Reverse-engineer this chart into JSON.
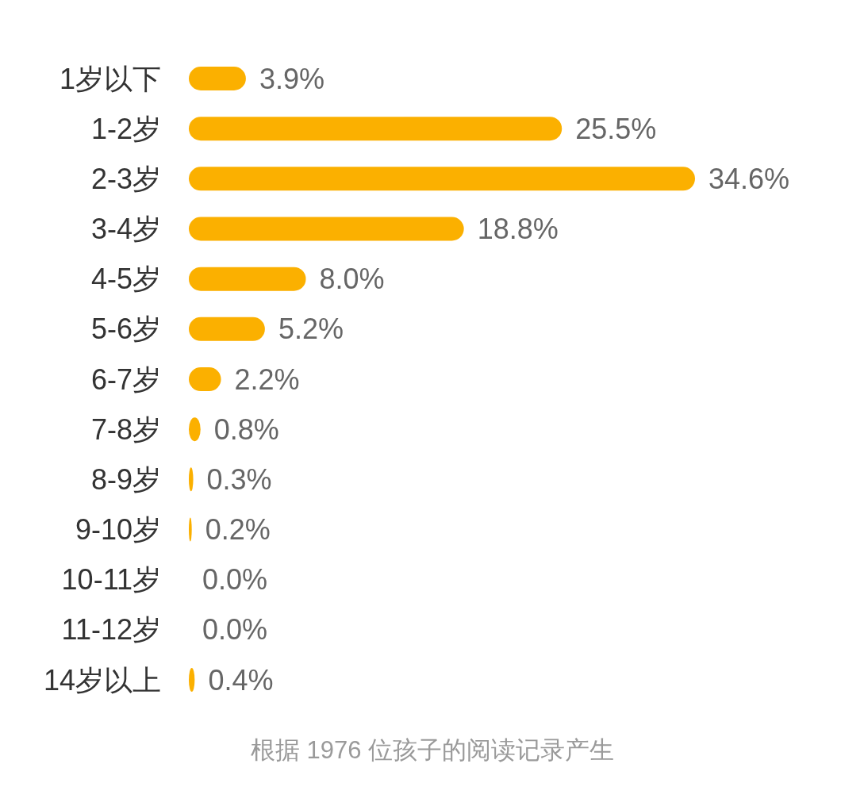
{
  "chart_data": {
    "type": "bar",
    "orientation": "horizontal",
    "color": "#fbb000",
    "categories": [
      "1岁以下",
      "1-2岁",
      "2-3岁",
      "3-4岁",
      "4-5岁",
      "5-6岁",
      "6-7岁",
      "7-8岁",
      "8-9岁",
      "9-10岁",
      "10-11岁",
      "11-12岁",
      "14岁以上"
    ],
    "values": [
      3.9,
      25.5,
      34.6,
      18.8,
      8.0,
      5.2,
      2.2,
      0.8,
      0.3,
      0.2,
      0.0,
      0.0,
      0.4
    ],
    "value_labels": [
      "3.9%",
      "25.5%",
      "34.6%",
      "18.8%",
      "8.0%",
      "5.2%",
      "2.2%",
      "0.8%",
      "0.3%",
      "0.2%",
      "0.0%",
      "0.0%",
      "0.4%"
    ],
    "annotations": [
      "根据 1976 位孩子的阅读记录产生"
    ]
  }
}
